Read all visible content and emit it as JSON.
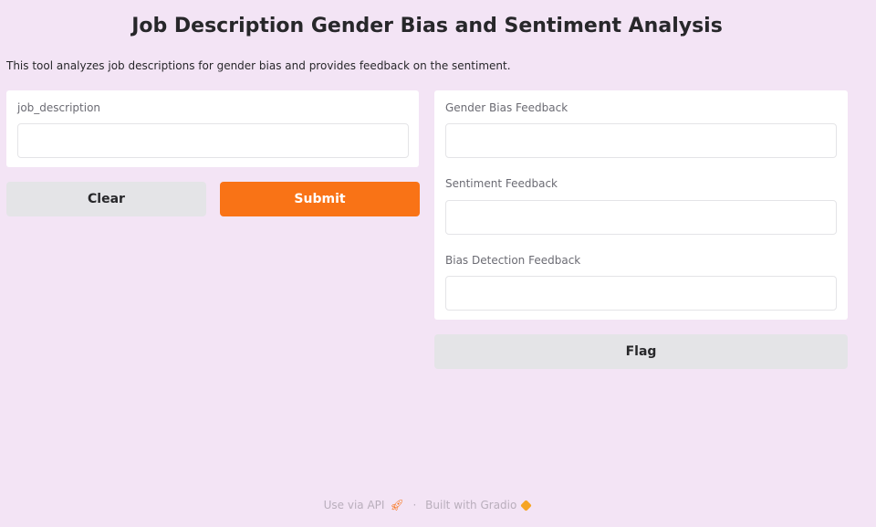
{
  "title": "Job Description Gender Bias and Sentiment Analysis",
  "description": "This tool analyzes job descriptions for gender bias and provides feedback on the sentiment.",
  "inputs": {
    "job_description": {
      "label": "job_description",
      "value": ""
    }
  },
  "buttons": {
    "clear": "Clear",
    "submit": "Submit",
    "flag": "Flag"
  },
  "outputs": [
    {
      "label": "Gender Bias Feedback",
      "value": ""
    },
    {
      "label": "Sentiment Feedback",
      "value": ""
    },
    {
      "label": "Bias Detection Feedback",
      "value": ""
    }
  ],
  "footer": {
    "api": "Use via API",
    "separator": "·",
    "built": "Built with Gradio",
    "api_icon": "rocket-icon",
    "brand_icon": "gradio-logo-icon"
  },
  "colors": {
    "background": "#f3e4f5",
    "primary": "#f97316",
    "secondary": "#e4e4e7"
  }
}
